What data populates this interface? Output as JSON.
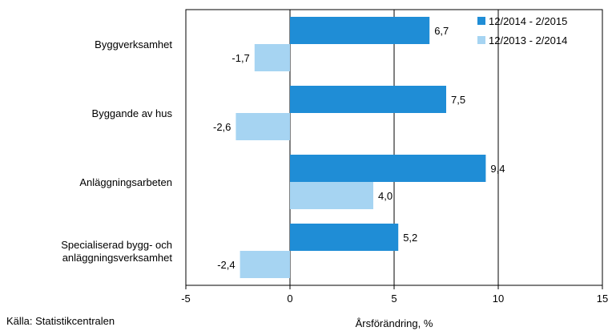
{
  "source": "Källa: Statistikcentralen",
  "chart_data": {
    "type": "bar",
    "orientation": "horizontal",
    "categories": [
      [
        "Byggverksamhet"
      ],
      [
        "Byggande av hus"
      ],
      [
        "Anläggningsarbeten"
      ],
      [
        "Specialiserad bygg- och",
        "anläggningsverksamhet"
      ]
    ],
    "series": [
      {
        "name": "12/2014 - 2/2015",
        "color": "#1f8dd6",
        "values": [
          6.7,
          7.5,
          9.4,
          5.2
        ],
        "labels": [
          "6,7",
          "7,5",
          "9,4",
          "5,2"
        ]
      },
      {
        "name": "12/2013 - 2/2014",
        "color": "#a6d4f2",
        "values": [
          -1.7,
          -2.6,
          4.0,
          -2.4
        ],
        "labels": [
          "-1,7",
          "-2,6",
          "4,0",
          "-2,4"
        ]
      }
    ],
    "xlabel": "Årsförändring, %",
    "xlim": [
      -5,
      15
    ],
    "xticks": [
      -5,
      0,
      5,
      10,
      15
    ],
    "xtick_labels": [
      "-5",
      "0",
      "5",
      "10",
      "15"
    ],
    "grid": "vertical",
    "legend_position": "top-right"
  }
}
